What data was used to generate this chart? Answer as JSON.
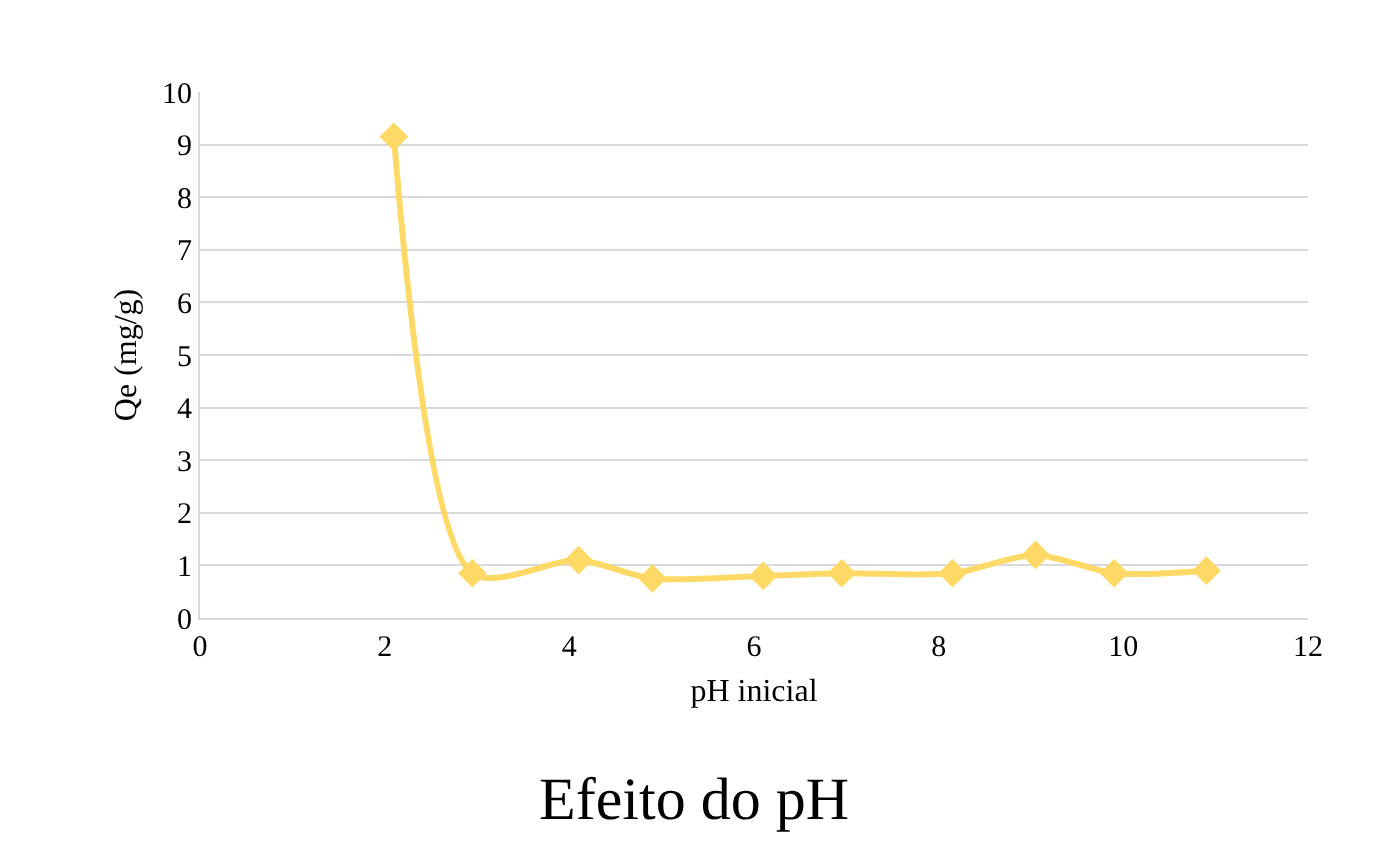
{
  "chart_data": {
    "type": "line",
    "title": "Efeito do pH",
    "xlabel": "pH inicial",
    "ylabel": "Qe (mg/g)",
    "x": [
      2.1,
      2.95,
      4.1,
      4.9,
      6.1,
      6.95,
      8.15,
      9.05,
      9.9,
      10.9
    ],
    "series": [
      {
        "color": "#ffd966",
        "values": [
          9.15,
          0.85,
          1.1,
          0.75,
          0.8,
          0.85,
          0.85,
          1.2,
          0.85,
          0.9
        ]
      }
    ],
    "xlim": [
      0,
      12
    ],
    "xticks": [
      0,
      2,
      4,
      6,
      8,
      10,
      12
    ],
    "ylim": [
      0,
      10
    ],
    "yticks": [
      0,
      1,
      2,
      3,
      4,
      5,
      6,
      7,
      8,
      9,
      10
    ],
    "grid": "y",
    "marker": "diamond",
    "line_style": "solid"
  }
}
